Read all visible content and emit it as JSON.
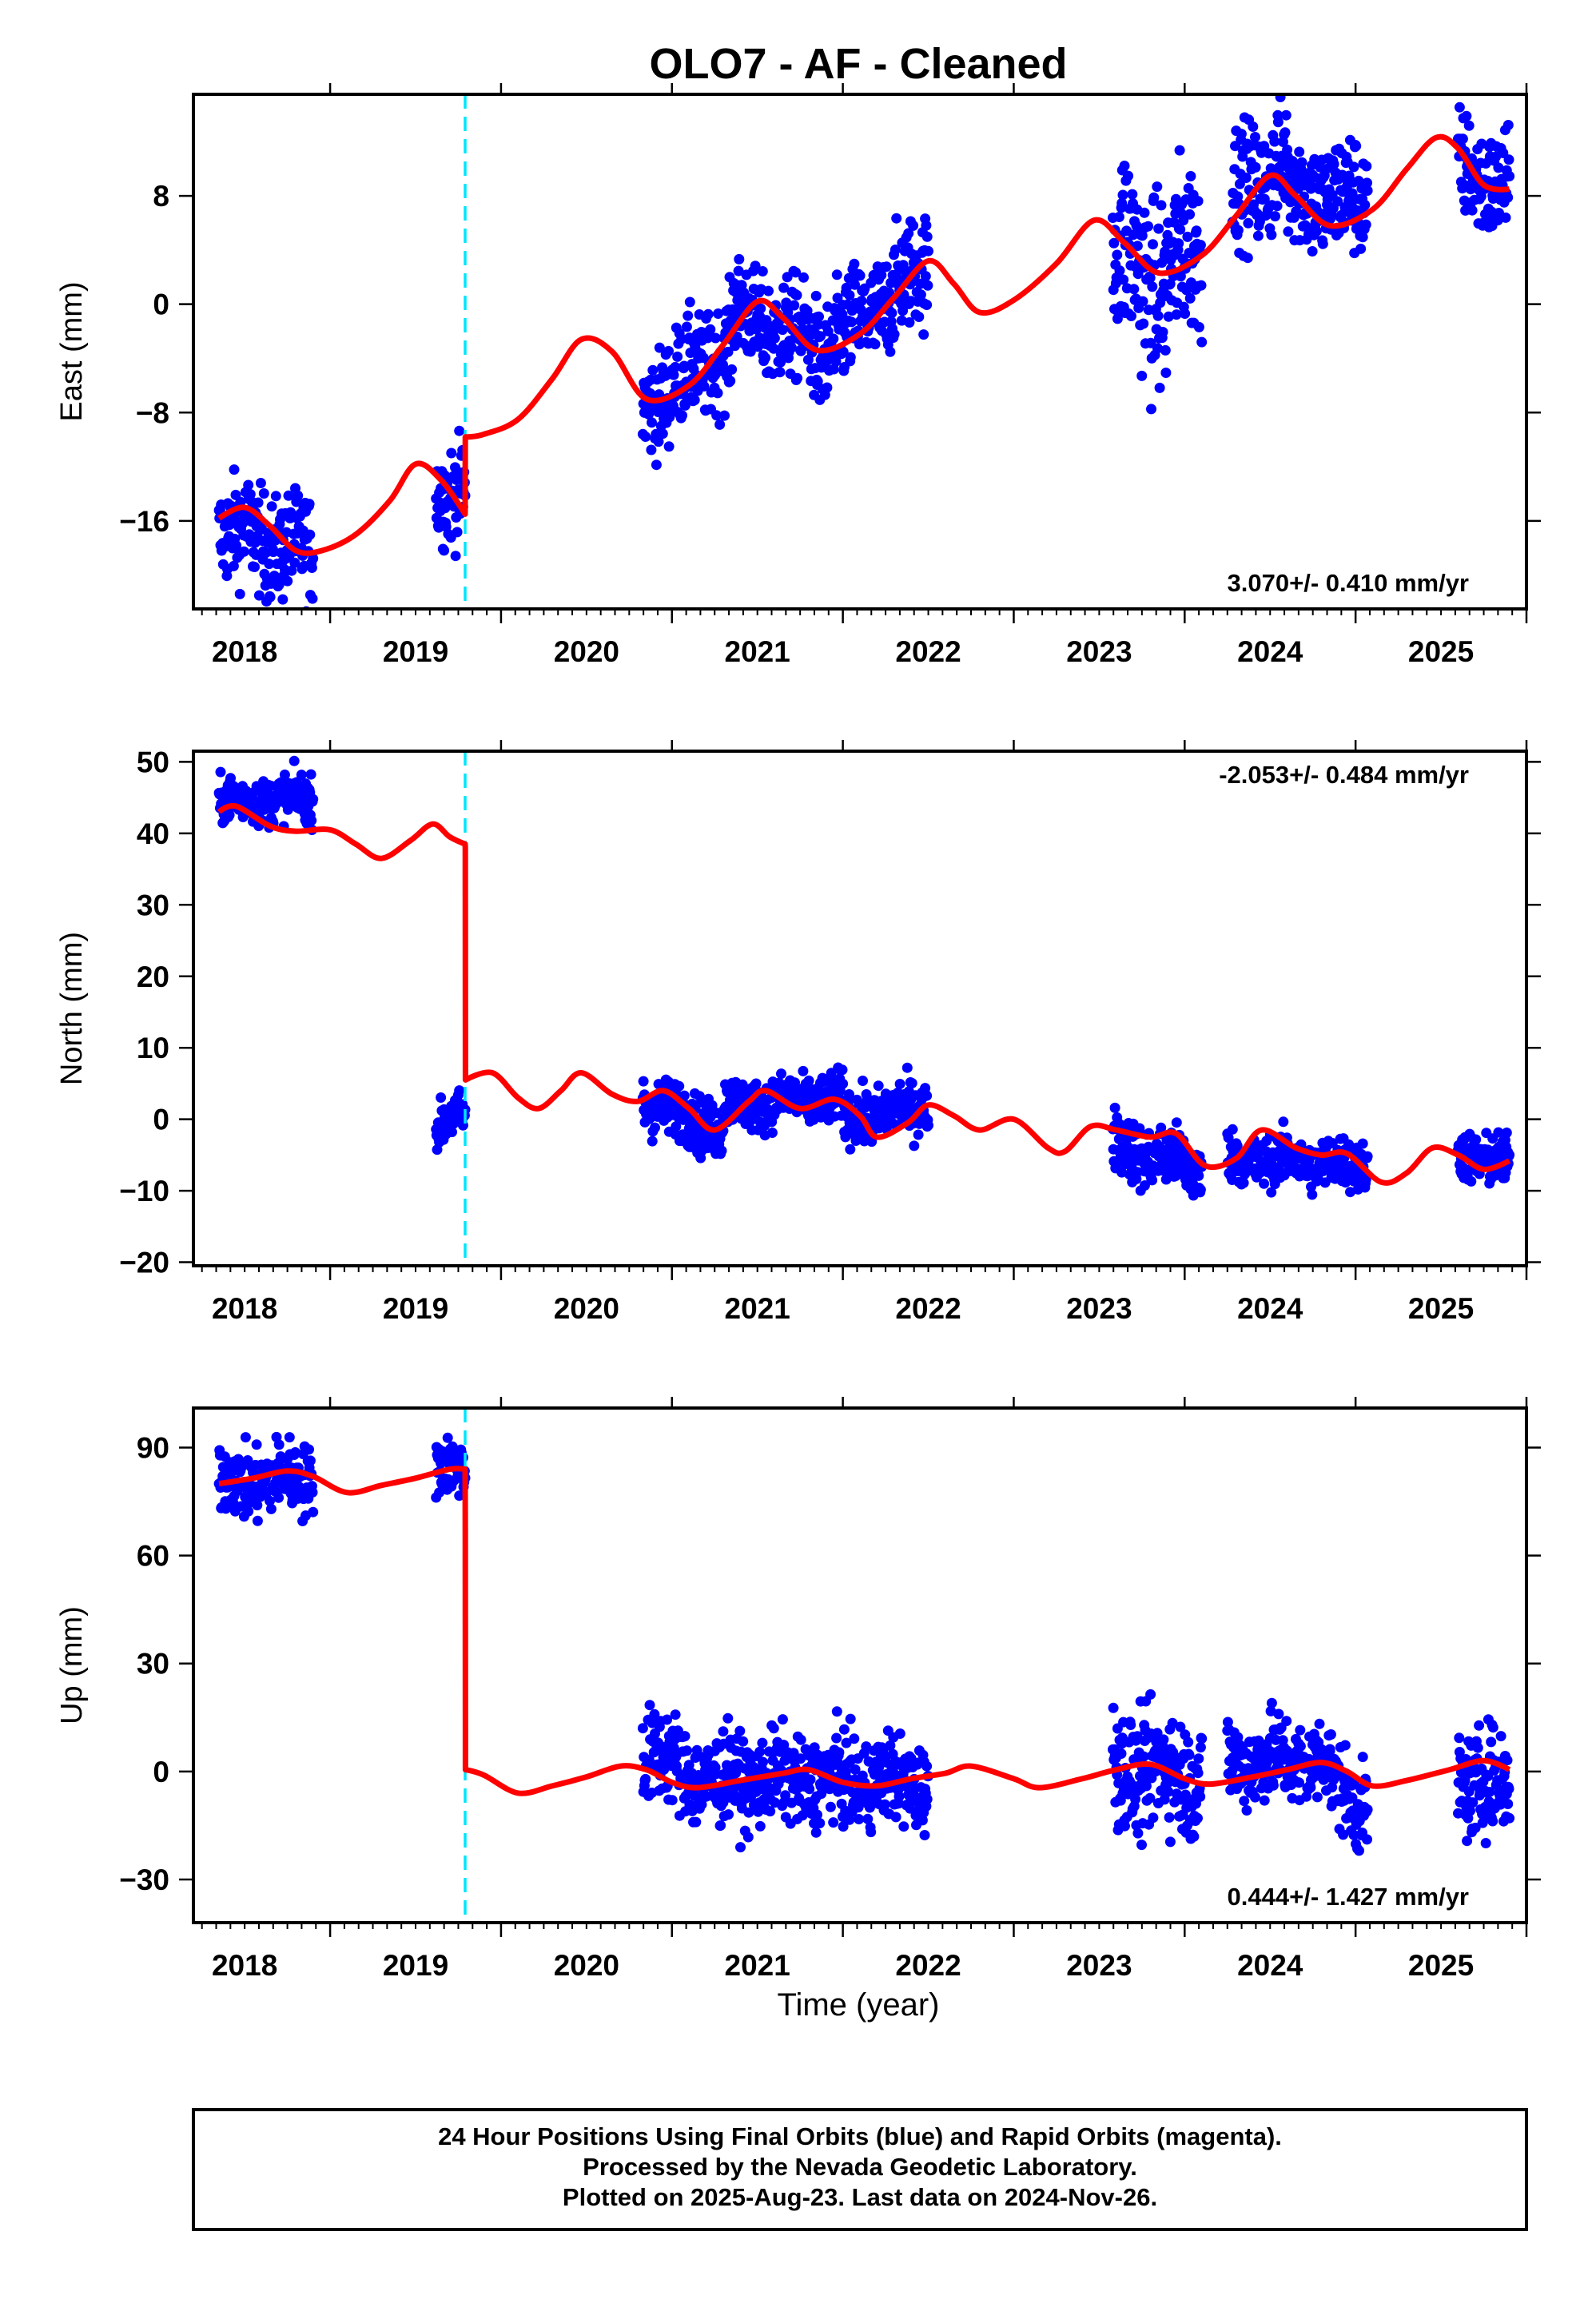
{
  "title": "OLO7  - AF - Cleaned",
  "colors": {
    "data": "#0000ff",
    "model": "#ff0000",
    "break": "#00e5ff",
    "frame": "#000000"
  },
  "chart_data": [
    {
      "type": "scatter",
      "id": "east",
      "ylabel": "East (mm)",
      "xlim": [
        2017.2,
        2025.0
      ],
      "ylim": [
        -22.5,
        15.5
      ],
      "yticks": [
        -16,
        -8,
        0,
        8
      ],
      "yticklabels": [
        "−16",
        "−8",
        "0",
        "8"
      ],
      "xticks": [
        2018,
        2019,
        2020,
        2021,
        2022,
        2023,
        2024,
        2025
      ],
      "rate_label": "3.070+/- 0.410 mm/yr",
      "rate_position": "bottom-right",
      "break_epochs": [
        2018.79
      ],
      "data_segments": [
        {
          "t0": 2017.35,
          "t1": 2017.9,
          "trend": [
            -16.5,
            -18.5
          ],
          "spread": 1.9
        },
        {
          "t0": 2018.62,
          "t1": 2018.79,
          "trend": [
            -13.5,
            -14.5
          ],
          "spread": 1.8
        },
        {
          "t0": 2019.83,
          "t1": 2020.35,
          "trend": [
            -7.5,
            -3.0
          ],
          "spread": 1.9
        },
        {
          "t0": 2020.35,
          "t1": 2020.85,
          "trend": [
            -0.5,
            -3.0
          ],
          "spread": 1.9
        },
        {
          "t0": 2020.85,
          "t1": 2021.5,
          "trend": [
            -4.0,
            3.0
          ],
          "spread": 2.0
        },
        {
          "t0": 2022.58,
          "t1": 2022.9,
          "trend": [
            4.0,
            1.0
          ],
          "spread": 3.6
        },
        {
          "t0": 2022.9,
          "t1": 2023.1,
          "trend": [
            2.0,
            4.5
          ],
          "spread": 3.3
        },
        {
          "t0": 2023.28,
          "t1": 2023.6,
          "trend": [
            8.0,
            10.5
          ],
          "spread": 2.2
        },
        {
          "t0": 2023.6,
          "t1": 2024.07,
          "trend": [
            8.5,
            7.5
          ],
          "spread": 2.2
        },
        {
          "t0": 2024.6,
          "t1": 2024.9,
          "trend": [
            10.0,
            8.5
          ],
          "spread": 2.0
        }
      ],
      "model_curve": {
        "knots": [
          [
            2017.35,
            -15.8
          ],
          [
            2017.5,
            -15.0
          ],
          [
            2017.65,
            -16.4
          ],
          [
            2017.8,
            -18.2
          ],
          [
            2017.95,
            -18.2
          ],
          [
            2018.15,
            -17.0
          ],
          [
            2018.35,
            -14.5
          ],
          [
            2018.5,
            -11.8
          ],
          [
            2018.65,
            -13.0
          ],
          [
            2018.79,
            -15.5
          ],
          [
            2018.791,
            -9.8
          ],
          [
            2018.9,
            -9.6
          ],
          [
            2019.1,
            -8.5
          ],
          [
            2019.3,
            -5.5
          ],
          [
            2019.47,
            -2.6
          ],
          [
            2019.65,
            -3.5
          ],
          [
            2019.85,
            -7.0
          ],
          [
            2020.1,
            -6.0
          ],
          [
            2020.3,
            -3.0
          ],
          [
            2020.5,
            0.2
          ],
          [
            2020.65,
            -1.0
          ],
          [
            2020.85,
            -3.4
          ],
          [
            2021.1,
            -2.2
          ],
          [
            2021.3,
            0.5
          ],
          [
            2021.5,
            3.2
          ],
          [
            2021.65,
            1.5
          ],
          [
            2021.8,
            -0.6
          ],
          [
            2022.0,
            0.3
          ],
          [
            2022.25,
            3.0
          ],
          [
            2022.47,
            6.2
          ],
          [
            2022.65,
            4.5
          ],
          [
            2022.85,
            2.3
          ],
          [
            2023.1,
            3.6
          ],
          [
            2023.3,
            6.5
          ],
          [
            2023.5,
            9.5
          ],
          [
            2023.65,
            8.0
          ],
          [
            2023.85,
            5.8
          ],
          [
            2024.1,
            7.0
          ],
          [
            2024.3,
            10.0
          ],
          [
            2024.47,
            12.3
          ],
          [
            2024.6,
            11.5
          ],
          [
            2024.75,
            8.8
          ],
          [
            2024.9,
            8.5
          ]
        ]
      }
    },
    {
      "type": "scatter",
      "id": "north",
      "ylabel": "North (mm)",
      "xlim": [
        2017.2,
        2025.0
      ],
      "ylim": [
        -20.5,
        51.5
      ],
      "yticks": [
        -20,
        -10,
        0,
        10,
        20,
        30,
        40,
        50
      ],
      "yticklabels": [
        "−20",
        "−10",
        "0",
        "10",
        "20",
        "30",
        "40",
        "50"
      ],
      "xticks": [
        2018,
        2019,
        2020,
        2021,
        2022,
        2023,
        2024,
        2025
      ],
      "rate_label": "-2.053+/- 0.484 mm/yr",
      "rate_position": "top-right",
      "break_epochs": [
        2018.79
      ],
      "data_segments": [
        {
          "t0": 2017.35,
          "t1": 2017.9,
          "trend": [
            44.5,
            45.0
          ],
          "spread": 1.6
        },
        {
          "t0": 2018.62,
          "t1": 2018.79,
          "trend": [
            -1.0,
            0.5
          ],
          "spread": 1.6
        },
        {
          "t0": 2019.83,
          "t1": 2020.3,
          "trend": [
            2.5,
            -1.5
          ],
          "spread": 2.0
        },
        {
          "t0": 2020.3,
          "t1": 2021.0,
          "trend": [
            2.0,
            3.0
          ],
          "spread": 1.7
        },
        {
          "t0": 2021.0,
          "t1": 2021.5,
          "trend": [
            0.0,
            2.0
          ],
          "spread": 1.9
        },
        {
          "t0": 2022.58,
          "t1": 2023.1,
          "trend": [
            -3.5,
            -7.0
          ],
          "spread": 2.2
        },
        {
          "t0": 2023.25,
          "t1": 2024.07,
          "trend": [
            -5.5,
            -6.5
          ],
          "spread": 1.8
        },
        {
          "t0": 2024.6,
          "t1": 2024.9,
          "trend": [
            -4.5,
            -6.5
          ],
          "spread": 1.8
        }
      ],
      "model_curve": {
        "knots": [
          [
            2017.35,
            43.0
          ],
          [
            2017.45,
            43.8
          ],
          [
            2017.65,
            41.0
          ],
          [
            2017.8,
            40.3
          ],
          [
            2018.0,
            40.5
          ],
          [
            2018.15,
            38.5
          ],
          [
            2018.3,
            36.5
          ],
          [
            2018.47,
            39.0
          ],
          [
            2018.6,
            41.3
          ],
          [
            2018.7,
            39.5
          ],
          [
            2018.79,
            38.5
          ],
          [
            2018.791,
            38.0
          ],
          [
            2018.792,
            5.5
          ],
          [
            2018.95,
            6.5
          ],
          [
            2019.1,
            3.0
          ],
          [
            2019.22,
            1.5
          ],
          [
            2019.35,
            4.0
          ],
          [
            2019.47,
            6.5
          ],
          [
            2019.65,
            3.5
          ],
          [
            2019.8,
            2.5
          ],
          [
            2019.95,
            4.0
          ],
          [
            2020.1,
            1.5
          ],
          [
            2020.25,
            -1.5
          ],
          [
            2020.45,
            2.5
          ],
          [
            2020.55,
            4.0
          ],
          [
            2020.75,
            1.5
          ],
          [
            2020.95,
            2.8
          ],
          [
            2021.1,
            0.5
          ],
          [
            2021.2,
            -2.5
          ],
          [
            2021.38,
            -0.5
          ],
          [
            2021.5,
            2.0
          ],
          [
            2021.65,
            0.5
          ],
          [
            2021.8,
            -1.5
          ],
          [
            2022.0,
            0.0
          ],
          [
            2022.2,
            -4.0
          ],
          [
            2022.3,
            -4.5
          ],
          [
            2022.45,
            -1.0
          ],
          [
            2022.6,
            -1.5
          ],
          [
            2022.8,
            -2.5
          ],
          [
            2022.95,
            -2.0
          ],
          [
            2023.12,
            -6.5
          ],
          [
            2023.3,
            -5.5
          ],
          [
            2023.45,
            -1.5
          ],
          [
            2023.65,
            -4.0
          ],
          [
            2023.8,
            -5.0
          ],
          [
            2023.95,
            -4.8
          ],
          [
            2024.15,
            -8.8
          ],
          [
            2024.3,
            -7.5
          ],
          [
            2024.45,
            -4.0
          ],
          [
            2024.6,
            -5.0
          ],
          [
            2024.75,
            -7.0
          ],
          [
            2024.9,
            -5.8
          ]
        ]
      }
    },
    {
      "type": "scatter",
      "id": "up",
      "ylabel": "Up (mm)",
      "xlabel": "Time (year)",
      "xlim": [
        2017.2,
        2025.0
      ],
      "ylim": [
        -42.0,
        101.0
      ],
      "yticks": [
        -30,
        0,
        30,
        60,
        90
      ],
      "yticklabels": [
        "−30",
        "0",
        "30",
        "60",
        "90"
      ],
      "xticks": [
        2018,
        2019,
        2020,
        2021,
        2022,
        2023,
        2024,
        2025
      ],
      "rate_label": "0.444+/- 1.427 mm/yr",
      "rate_position": "bottom-right",
      "break_epochs": [
        2018.79
      ],
      "data_segments": [
        {
          "t0": 2017.35,
          "t1": 2017.9,
          "trend": [
            80.0,
            82.0
          ],
          "spread": 5.0
        },
        {
          "t0": 2018.62,
          "t1": 2018.79,
          "trend": [
            84.0,
            84.0
          ],
          "spread": 4.0
        },
        {
          "t0": 2019.83,
          "t1": 2020.3,
          "trend": [
            6.0,
            -5.0
          ],
          "spread": 6.5
        },
        {
          "t0": 2020.3,
          "t1": 2021.5,
          "trend": [
            -2.0,
            -3.0
          ],
          "spread": 6.0
        },
        {
          "t0": 2022.58,
          "t1": 2023.1,
          "trend": [
            1.0,
            -1.0
          ],
          "spread": 8.0
        },
        {
          "t0": 2023.25,
          "t1": 2023.85,
          "trend": [
            3.0,
            3.0
          ],
          "spread": 6.0
        },
        {
          "t0": 2023.85,
          "t1": 2024.07,
          "trend": [
            -3.0,
            -10.0
          ],
          "spread": 6.0
        },
        {
          "t0": 2024.6,
          "t1": 2024.9,
          "trend": [
            -2.0,
            -4.0
          ],
          "spread": 7.0
        }
      ],
      "model_curve": {
        "knots": [
          [
            2017.35,
            80.0
          ],
          [
            2017.55,
            81.5
          ],
          [
            2017.75,
            83.5
          ],
          [
            2017.9,
            82.0
          ],
          [
            2018.1,
            77.5
          ],
          [
            2018.3,
            79.5
          ],
          [
            2018.5,
            81.5
          ],
          [
            2018.7,
            84.0
          ],
          [
            2018.79,
            84.0
          ],
          [
            2018.791,
            66.0
          ],
          [
            2018.792,
            0.5
          ],
          [
            2018.9,
            -1.0
          ],
          [
            2019.1,
            -6.0
          ],
          [
            2019.3,
            -4.0
          ],
          [
            2019.5,
            -1.5
          ],
          [
            2019.7,
            1.5
          ],
          [
            2019.85,
            0.5
          ],
          [
            2020.0,
            -3.0
          ],
          [
            2020.15,
            -4.5
          ],
          [
            2020.4,
            -2.5
          ],
          [
            2020.65,
            -0.5
          ],
          [
            2020.8,
            0.5
          ],
          [
            2021.0,
            -3.0
          ],
          [
            2021.2,
            -4.0
          ],
          [
            2021.4,
            -2.0
          ],
          [
            2021.6,
            -0.5
          ],
          [
            2021.75,
            1.5
          ],
          [
            2022.0,
            -2.0
          ],
          [
            2022.15,
            -4.5
          ],
          [
            2022.4,
            -2.0
          ],
          [
            2022.6,
            0.5
          ],
          [
            2022.8,
            2.0
          ],
          [
            2023.0,
            -2.0
          ],
          [
            2023.15,
            -3.5
          ],
          [
            2023.4,
            -1.5
          ],
          [
            2023.6,
            0.5
          ],
          [
            2023.8,
            2.5
          ],
          [
            2023.95,
            0.0
          ],
          [
            2024.1,
            -4.0
          ],
          [
            2024.3,
            -2.5
          ],
          [
            2024.55,
            0.5
          ],
          [
            2024.75,
            3.0
          ],
          [
            2024.9,
            0.5
          ]
        ]
      }
    }
  ],
  "footer": {
    "line1": "24 Hour Positions Using Final Orbits (blue) and Rapid Orbits (magenta).",
    "line2": "Processed by the Nevada Geodetic Laboratory.",
    "line3": "Plotted on 2025-Aug-23. Last data on 2024-Nov-26."
  }
}
